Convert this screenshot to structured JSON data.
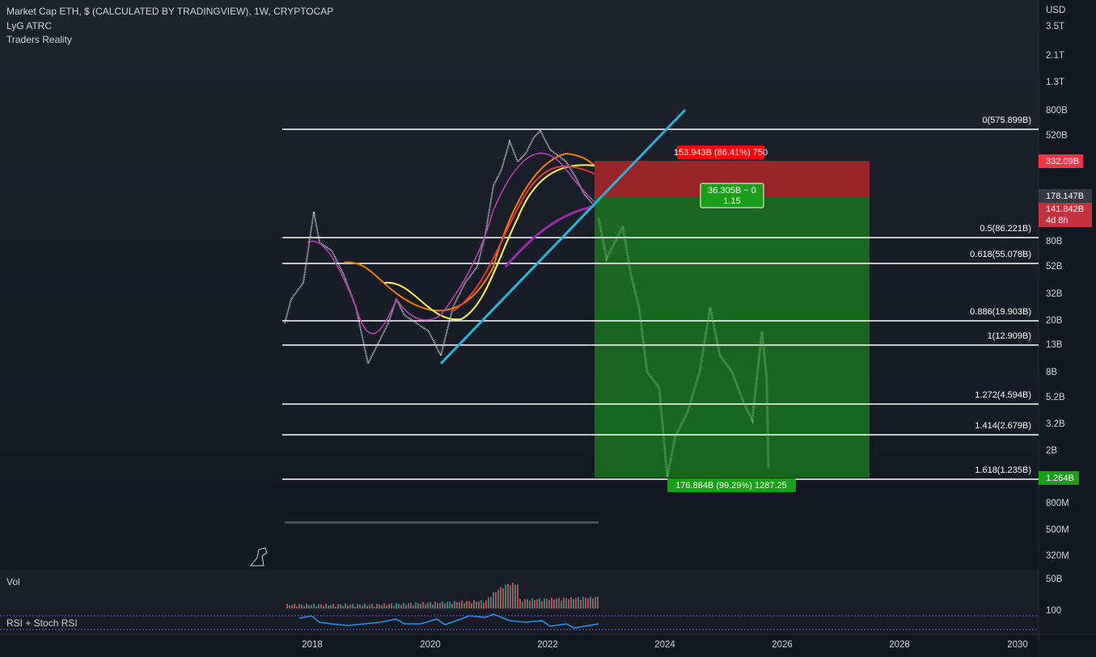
{
  "header": {
    "title": "Market Cap ETH, $ (CALCULATED BY TRADINGVIEW), 1W, CRYPTOCAP",
    "indicators": [
      "LyG ATRC",
      "Traders Reality"
    ]
  },
  "price_axis": {
    "currency": "USD",
    "labels": [
      "3.5T",
      "2.1T",
      "1.3T",
      "800B",
      "520B",
      "80B",
      "52B",
      "32B",
      "20B",
      "13B",
      "8B",
      "5.2B",
      "3.2B",
      "2B",
      "800M",
      "500M",
      "320M"
    ]
  },
  "fib_levels": [
    "0(575.899B)",
    "0.5(86.221B)",
    "0.618(55.078B)",
    "0.886(19.903B)",
    "1(12.909B)",
    "1.272(4.594B)",
    "1.414(2.679B)",
    "1.618(1.235B)"
  ],
  "position": {
    "stop_label": "153.943B (86.41%) 750",
    "entry_label": "36.305B ~ 0",
    "entry_ratio": "1.15",
    "target_label": "176.884B (99.29%) 1287.25"
  },
  "price_tags": {
    "stop": "332.09B",
    "current": "178.147B",
    "last": "141.842B",
    "countdown": "4d 8h",
    "target": "1.264B"
  },
  "panes": [
    "Vol",
    "RSI + Stoch RSI"
  ],
  "volume_axis": "50B",
  "rsi_axis": "100",
  "time_axis": [
    "2018",
    "2020",
    "2022",
    "2024",
    "2026",
    "2028",
    "2030"
  ]
}
